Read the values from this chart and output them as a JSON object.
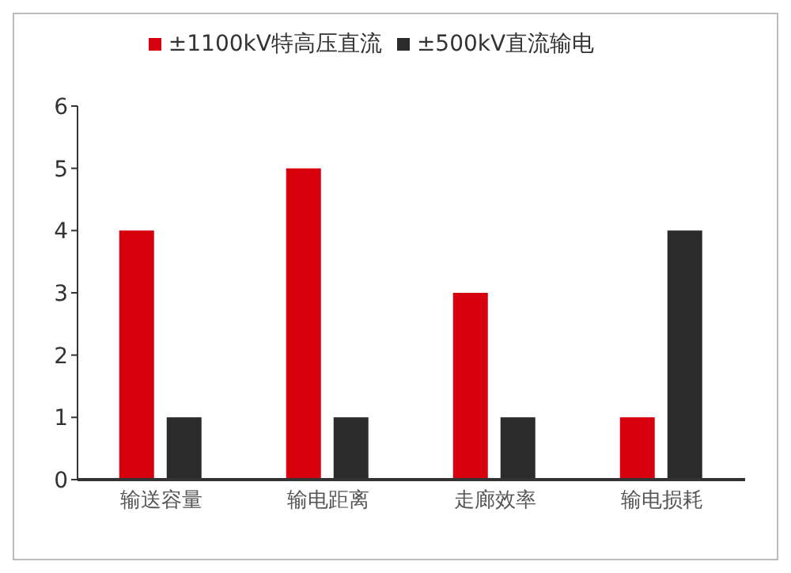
{
  "chart_data": {
    "type": "bar",
    "categories": [
      "输送容量",
      "输电距离",
      "走廊效率",
      "输电损耗"
    ],
    "series": [
      {
        "name": "±1100kV特高压直流",
        "color": "#d7000f",
        "values": [
          4,
          5,
          3,
          1
        ]
      },
      {
        "name": "±500kV直流输电",
        "color": "#2b2b2b",
        "values": [
          1,
          1,
          1,
          4
        ]
      }
    ],
    "ylim": [
      0,
      6
    ],
    "yticks": [
      0,
      1,
      2,
      3,
      4,
      5,
      6
    ],
    "grid": false,
    "legend": "top"
  }
}
